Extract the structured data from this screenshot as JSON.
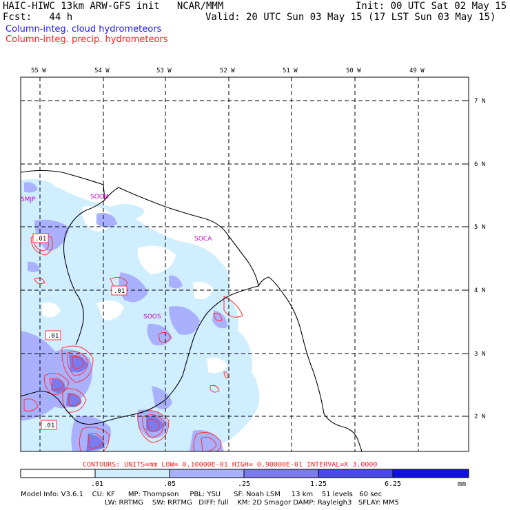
{
  "header": {
    "model_line": "HAIC-HIWC 13km ARW-GFS init   NCAR/MMM",
    "fcst_line": "Fcst:   44 h",
    "init_line": "Init: 00 UTC Sat 02 May 15",
    "valid_line": "Valid: 20 UTC Sun 03 May 15 (17 LST Sun 03 May 15)",
    "legend_cloud": "Column-integ. cloud hydrometeors",
    "legend_precip": "Column-integ. precip. hydrometeors"
  },
  "colors": {
    "cloud_text": "#1a1aff",
    "precip_text": "#ff2020",
    "station_text": "#cc00cc",
    "fill_levels": [
      "#ffffff",
      "#cfeeff",
      "#a9b1ff",
      "#7b7bf0",
      "#4a4ae8",
      "#1010e0"
    ]
  },
  "map": {
    "lon_labels": [
      "55 W",
      "54 W",
      "53 W",
      "52 W",
      "51 W",
      "50 W",
      "49 W"
    ],
    "lat_labels": [
      "7 N",
      "6 N",
      "5 N",
      "4 N",
      "3 N",
      "2 N"
    ],
    "stations": [
      "SMJP",
      "SOCM",
      "SOCA",
      "SOOS"
    ],
    "contour_labels": [
      ".01",
      ".01",
      ".01",
      ".01"
    ]
  },
  "contour_info": "CONTOURS:  UNITS=mm  LOW= 0.10000E-01  HIGH= 0.90000E-01  INTERVAL=X  3.0000",
  "colorbar": {
    "tick_labels": [
      ".01",
      ".05",
      ".25",
      "1.25",
      "6.25"
    ],
    "units": "mm"
  },
  "footer": {
    "line1": "Model Info: V3.6.1    CU: KF      MP: Thompson     PBL: YSU      SF: Noah LSM     13 km    51 levels   60 sec",
    "line2": "LW: RRTMG    SW: RRTMG   DIFF: full    KM: 2D Smagor DAMP: Rayleigh3   SFLAY: MM5"
  }
}
